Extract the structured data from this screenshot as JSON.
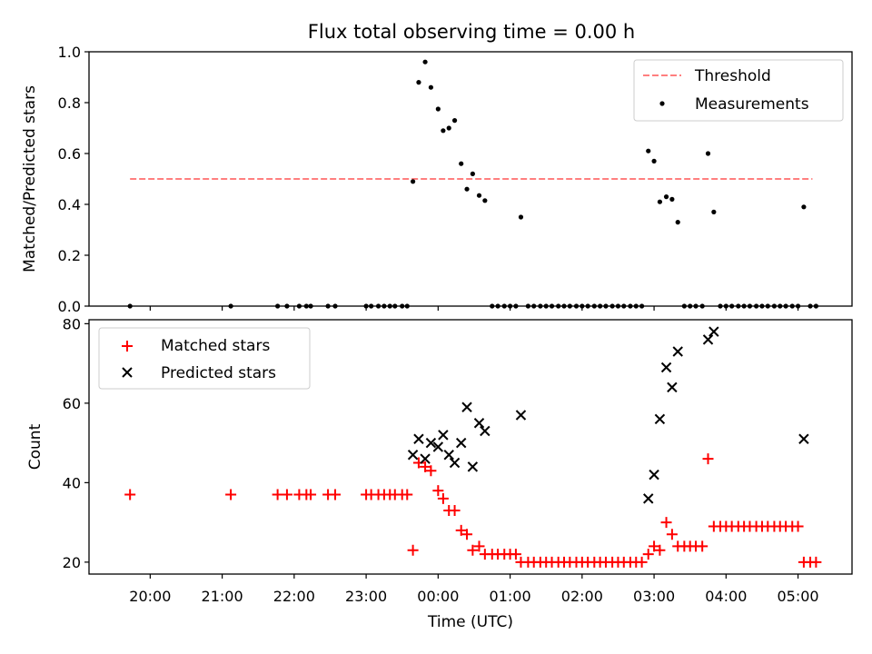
{
  "title": "Flux total observing time = 0.00 h",
  "top": {
    "ylabel": "Matched/Predicted stars",
    "ylim": [
      0,
      1.0
    ],
    "yticks": [
      "0.0",
      "0.2",
      "0.4",
      "0.6",
      "0.8",
      "1.0"
    ],
    "legend": [
      {
        "label": "Threshold",
        "color": "#ff7f7f",
        "marker": "dashed-line"
      },
      {
        "label": "Measurements",
        "color": "#000000",
        "marker": "dot"
      }
    ]
  },
  "bottom": {
    "ylabel": "Count",
    "xlabel": "Time (UTC)",
    "ylim": [
      17,
      81
    ],
    "yticks": [
      "20",
      "40",
      "60",
      "80"
    ],
    "xticks": [
      "20:00",
      "21:00",
      "22:00",
      "23:00",
      "00:00",
      "01:00",
      "02:00",
      "03:00",
      "04:00",
      "05:00"
    ],
    "legend": [
      {
        "label": "Matched stars",
        "color": "#ff0000",
        "marker": "plus"
      },
      {
        "label": "Predicted stars",
        "color": "#000000",
        "marker": "x"
      }
    ]
  },
  "chart_data": [
    {
      "type": "scatter",
      "title": "Flux total observing time = 0.00 h",
      "xlabel": "",
      "ylabel": "Matched/Predicted stars",
      "x_unit": "hours relative to 00:00 UTC",
      "xlim": [
        -4.85,
        5.75
      ],
      "ylim": [
        0,
        1.0
      ],
      "grid": false,
      "legend_position": "top-right",
      "threshold": {
        "name": "Threshold",
        "y": 0.5,
        "x_range": [
          -4.28,
          5.2
        ],
        "color": "#ff7f7f",
        "style": "dashed"
      },
      "series": [
        {
          "name": "Measurements",
          "color": "#000000",
          "points": [
            [
              -4.28,
              0
            ],
            [
              -2.88,
              0
            ],
            [
              -2.23,
              0
            ],
            [
              -2.1,
              0
            ],
            [
              -1.93,
              0
            ],
            [
              -1.83,
              0
            ],
            [
              -1.77,
              0
            ],
            [
              -1.53,
              0
            ],
            [
              -1.43,
              0
            ],
            [
              -1.0,
              0
            ],
            [
              -0.93,
              0
            ],
            [
              -0.83,
              0
            ],
            [
              -0.75,
              0
            ],
            [
              -0.67,
              0
            ],
            [
              -0.6,
              0
            ],
            [
              -0.5,
              0
            ],
            [
              -0.43,
              0
            ],
            [
              -0.35,
              0.49
            ],
            [
              -0.27,
              0.88
            ],
            [
              -0.18,
              0.96
            ],
            [
              -0.1,
              0.86
            ],
            [
              0.0,
              0.775
            ],
            [
              0.07,
              0.69
            ],
            [
              0.15,
              0.7
            ],
            [
              0.23,
              0.73
            ],
            [
              0.32,
              0.56
            ],
            [
              0.4,
              0.46
            ],
            [
              0.48,
              0.52
            ],
            [
              0.57,
              0.435
            ],
            [
              0.65,
              0.415
            ],
            [
              0.75,
              0
            ],
            [
              0.83,
              0
            ],
            [
              0.92,
              0
            ],
            [
              1.0,
              0
            ],
            [
              1.08,
              0
            ],
            [
              1.15,
              0.35
            ],
            [
              1.25,
              0
            ],
            [
              1.33,
              0
            ],
            [
              1.42,
              0
            ],
            [
              1.5,
              0
            ],
            [
              1.58,
              0
            ],
            [
              1.67,
              0
            ],
            [
              1.75,
              0
            ],
            [
              1.83,
              0
            ],
            [
              1.92,
              0
            ],
            [
              2.0,
              0
            ],
            [
              2.08,
              0
            ],
            [
              2.17,
              0
            ],
            [
              2.25,
              0
            ],
            [
              2.33,
              0
            ],
            [
              2.42,
              0
            ],
            [
              2.5,
              0
            ],
            [
              2.58,
              0
            ],
            [
              2.67,
              0
            ],
            [
              2.75,
              0
            ],
            [
              2.83,
              0
            ],
            [
              2.92,
              0.61
            ],
            [
              3.0,
              0.57
            ],
            [
              3.08,
              0.41
            ],
            [
              3.17,
              0.43
            ],
            [
              3.25,
              0.42
            ],
            [
              3.33,
              0.33
            ],
            [
              3.42,
              0
            ],
            [
              3.5,
              0
            ],
            [
              3.58,
              0
            ],
            [
              3.67,
              0
            ],
            [
              3.75,
              0.6
            ],
            [
              3.83,
              0.37
            ],
            [
              3.92,
              0
            ],
            [
              4.0,
              0
            ],
            [
              4.08,
              0
            ],
            [
              4.17,
              0
            ],
            [
              4.25,
              0
            ],
            [
              4.33,
              0
            ],
            [
              4.42,
              0
            ],
            [
              4.5,
              0
            ],
            [
              4.58,
              0
            ],
            [
              4.67,
              0
            ],
            [
              4.75,
              0
            ],
            [
              4.83,
              0
            ],
            [
              4.92,
              0
            ],
            [
              5.0,
              0
            ],
            [
              5.08,
              0.39
            ],
            [
              5.17,
              0
            ],
            [
              5.25,
              0
            ]
          ]
        }
      ]
    },
    {
      "type": "scatter",
      "title": "",
      "xlabel": "Time (UTC)",
      "ylabel": "Count",
      "x_unit": "hours relative to 00:00 UTC",
      "xlim": [
        -4.85,
        5.75
      ],
      "ylim": [
        17,
        81
      ],
      "x_tick_labels": [
        "20:00",
        "21:00",
        "22:00",
        "23:00",
        "00:00",
        "01:00",
        "02:00",
        "03:00",
        "04:00",
        "05:00"
      ],
      "grid": false,
      "legend_position": "top-left",
      "series": [
        {
          "name": "Matched stars",
          "color": "#ff0000",
          "marker": "plus",
          "points": [
            [
              -4.28,
              37
            ],
            [
              -2.88,
              37
            ],
            [
              -2.23,
              37
            ],
            [
              -2.1,
              37
            ],
            [
              -1.93,
              37
            ],
            [
              -1.83,
              37
            ],
            [
              -1.77,
              37
            ],
            [
              -1.53,
              37
            ],
            [
              -1.43,
              37
            ],
            [
              -1.0,
              37
            ],
            [
              -0.93,
              37
            ],
            [
              -0.83,
              37
            ],
            [
              -0.75,
              37
            ],
            [
              -0.67,
              37
            ],
            [
              -0.6,
              37
            ],
            [
              -0.5,
              37
            ],
            [
              -0.43,
              37
            ],
            [
              -0.35,
              23
            ],
            [
              -0.27,
              45
            ],
            [
              -0.18,
              44
            ],
            [
              -0.1,
              43
            ],
            [
              0.0,
              38
            ],
            [
              0.07,
              36
            ],
            [
              0.15,
              33
            ],
            [
              0.23,
              33
            ],
            [
              0.32,
              28
            ],
            [
              0.4,
              27
            ],
            [
              0.48,
              23
            ],
            [
              0.57,
              24
            ],
            [
              0.65,
              22
            ],
            [
              0.75,
              22
            ],
            [
              0.83,
              22
            ],
            [
              0.92,
              22
            ],
            [
              1.0,
              22
            ],
            [
              1.08,
              22
            ],
            [
              1.15,
              20
            ],
            [
              1.25,
              20
            ],
            [
              1.33,
              20
            ],
            [
              1.42,
              20
            ],
            [
              1.5,
              20
            ],
            [
              1.58,
              20
            ],
            [
              1.67,
              20
            ],
            [
              1.75,
              20
            ],
            [
              1.83,
              20
            ],
            [
              1.92,
              20
            ],
            [
              2.0,
              20
            ],
            [
              2.08,
              20
            ],
            [
              2.17,
              20
            ],
            [
              2.25,
              20
            ],
            [
              2.33,
              20
            ],
            [
              2.42,
              20
            ],
            [
              2.5,
              20
            ],
            [
              2.58,
              20
            ],
            [
              2.67,
              20
            ],
            [
              2.75,
              20
            ],
            [
              2.83,
              20
            ],
            [
              2.92,
              22
            ],
            [
              3.0,
              24
            ],
            [
              3.08,
              23
            ],
            [
              3.17,
              30
            ],
            [
              3.25,
              27
            ],
            [
              3.33,
              24
            ],
            [
              3.42,
              24
            ],
            [
              3.5,
              24
            ],
            [
              3.58,
              24
            ],
            [
              3.67,
              24
            ],
            [
              3.75,
              46
            ],
            [
              3.83,
              29
            ],
            [
              3.92,
              29
            ],
            [
              4.0,
              29
            ],
            [
              4.08,
              29
            ],
            [
              4.17,
              29
            ],
            [
              4.25,
              29
            ],
            [
              4.33,
              29
            ],
            [
              4.42,
              29
            ],
            [
              4.5,
              29
            ],
            [
              4.58,
              29
            ],
            [
              4.67,
              29
            ],
            [
              4.75,
              29
            ],
            [
              4.83,
              29
            ],
            [
              4.92,
              29
            ],
            [
              5.0,
              29
            ],
            [
              5.08,
              20
            ],
            [
              5.17,
              20
            ],
            [
              5.25,
              20
            ]
          ]
        },
        {
          "name": "Predicted stars",
          "color": "#000000",
          "marker": "x",
          "points": [
            [
              -0.35,
              47
            ],
            [
              -0.27,
              51
            ],
            [
              -0.18,
              46
            ],
            [
              -0.1,
              50
            ],
            [
              0.0,
              49
            ],
            [
              0.07,
              52
            ],
            [
              0.15,
              47
            ],
            [
              0.23,
              45
            ],
            [
              0.32,
              50
            ],
            [
              0.4,
              59
            ],
            [
              0.48,
              44
            ],
            [
              0.57,
              55
            ],
            [
              0.65,
              53
            ],
            [
              1.15,
              57
            ],
            [
              2.92,
              36
            ],
            [
              3.0,
              42
            ],
            [
              3.08,
              56
            ],
            [
              3.17,
              69
            ],
            [
              3.25,
              64
            ],
            [
              3.33,
              73
            ],
            [
              3.75,
              76
            ],
            [
              3.83,
              78
            ],
            [
              5.08,
              51
            ]
          ]
        }
      ]
    }
  ]
}
